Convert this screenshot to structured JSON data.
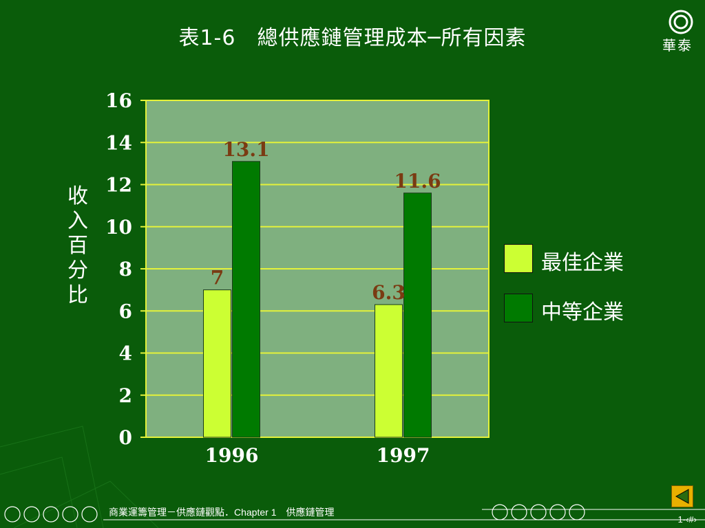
{
  "slide": {
    "title": "表1-6　總供應鏈管理成本─所有因素",
    "logo_text": "華泰",
    "footer_text": "商業運籌管理－供應鏈觀點．Chapter 1　供應鏈管理",
    "page_number": "1-‹#›"
  },
  "colors": {
    "background": "#0a5c0a",
    "plot_area": "#7fb07f",
    "grid": "#e4f23a",
    "best": "#ccff33",
    "average": "#007a00",
    "data_label": "#7a3b12"
  },
  "chart_data": {
    "type": "bar",
    "title": "表1-6　總供應鏈管理成本─所有因素",
    "xlabel": "",
    "ylabel": "收入百分比",
    "categories": [
      "1996",
      "1997"
    ],
    "ylim": [
      0,
      16
    ],
    "yticks": [
      0,
      2,
      4,
      6,
      8,
      10,
      12,
      14,
      16
    ],
    "grid": true,
    "legend_position": "right",
    "series": [
      {
        "name": "最佳企業",
        "values": [
          7,
          6.3
        ],
        "labels": [
          "7",
          "6.3"
        ],
        "color": "#ccff33"
      },
      {
        "name": "中等企業",
        "values": [
          13.1,
          11.6
        ],
        "labels": [
          "13.1",
          "11.6"
        ],
        "color": "#007a00"
      }
    ]
  }
}
